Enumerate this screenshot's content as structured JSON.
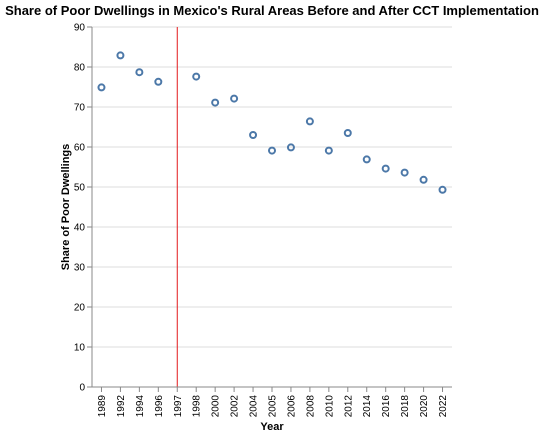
{
  "chart_data": {
    "type": "scatter",
    "title": "Share of Poor Dwellings in Mexico's Rural Areas Before and After CCT Implementation",
    "xlabel": "Year",
    "ylabel": "Share of Poor Dwellings",
    "categories": [
      "1989",
      "1992",
      "1994",
      "1996",
      "1997",
      "1998",
      "2000",
      "2002",
      "2004",
      "2005",
      "2006",
      "2008",
      "2010",
      "2012",
      "2014",
      "2016",
      "2018",
      "2020",
      "2022"
    ],
    "points": [
      {
        "x": "1989",
        "y": 74.9
      },
      {
        "x": "1992",
        "y": 82.9
      },
      {
        "x": "1994",
        "y": 78.7
      },
      {
        "x": "1996",
        "y": 76.3
      },
      {
        "x": "1998",
        "y": 77.6
      },
      {
        "x": "2000",
        "y": 71.1
      },
      {
        "x": "2002",
        "y": 72.1
      },
      {
        "x": "2004",
        "y": 63.0
      },
      {
        "x": "2005",
        "y": 59.1
      },
      {
        "x": "2006",
        "y": 59.9
      },
      {
        "x": "2008",
        "y": 66.4
      },
      {
        "x": "2010",
        "y": 59.1
      },
      {
        "x": "2012",
        "y": 63.5
      },
      {
        "x": "2014",
        "y": 56.9
      },
      {
        "x": "2016",
        "y": 54.6
      },
      {
        "x": "2018",
        "y": 53.6
      },
      {
        "x": "2020",
        "y": 51.8
      },
      {
        "x": "2022",
        "y": 49.3
      }
    ],
    "reference_line": {
      "x": "1997",
      "color": "#e41a1c"
    },
    "ylim": [
      0,
      90
    ],
    "yticks": [
      0,
      10,
      20,
      30,
      40,
      50,
      60,
      70,
      80,
      90
    ],
    "grid": true,
    "point_color": "#4c78a8"
  }
}
